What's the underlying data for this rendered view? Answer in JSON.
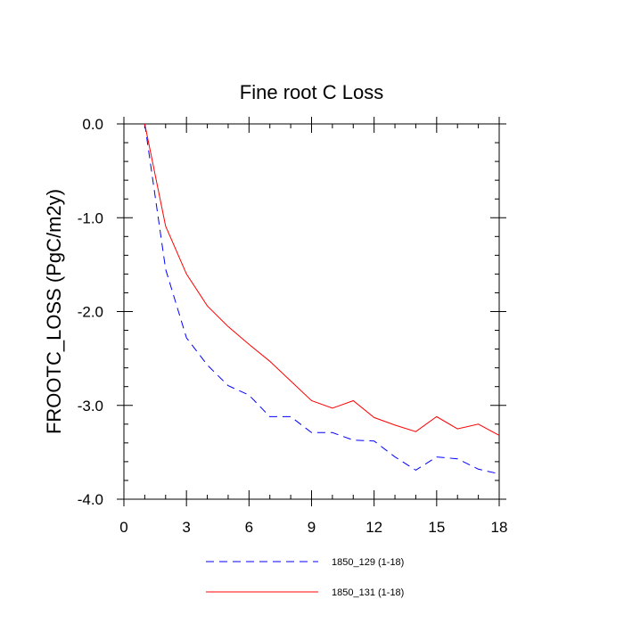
{
  "chart_data": {
    "type": "line",
    "title": "Fine root C Loss",
    "xlabel": "",
    "ylabel": "FROOTC_LOSS  (PgC/m2y)",
    "xlim": [
      0,
      18
    ],
    "ylim": [
      -4.0,
      0.0
    ],
    "x_ticks": [
      0,
      3,
      6,
      9,
      12,
      15,
      18
    ],
    "x_tick_labels": [
      "0",
      "3",
      "6",
      "9",
      "12",
      "15",
      "18"
    ],
    "y_ticks": [
      0.0,
      -1.0,
      -2.0,
      -3.0,
      -4.0
    ],
    "y_tick_labels": [
      "0.0",
      "-1.0",
      "-2.0",
      "-3.0",
      "-4.0"
    ],
    "grid": false,
    "legend_placement": "bottom",
    "x": [
      1,
      2,
      3,
      4,
      5,
      6,
      7,
      8,
      9,
      10,
      11,
      12,
      13,
      14,
      15,
      16,
      17,
      18
    ],
    "series": [
      {
        "name": "1850_129 (1-18)",
        "color": "#0000ff",
        "dash": "dashed",
        "values": [
          0.0,
          -1.55,
          -2.28,
          -2.57,
          -2.79,
          -2.89,
          -3.12,
          -3.12,
          -3.29,
          -3.29,
          -3.37,
          -3.38,
          -3.55,
          -3.69,
          -3.55,
          -3.57,
          -3.68,
          -3.73
        ]
      },
      {
        "name": "1850_131 (1-18)",
        "color": "#ff0000",
        "dash": "solid",
        "values": [
          0.0,
          -1.09,
          -1.6,
          -1.94,
          -2.16,
          -2.35,
          -2.53,
          -2.74,
          -2.95,
          -3.03,
          -2.95,
          -3.13,
          -3.21,
          -3.28,
          -3.12,
          -3.25,
          -3.2,
          -3.32
        ]
      }
    ]
  }
}
